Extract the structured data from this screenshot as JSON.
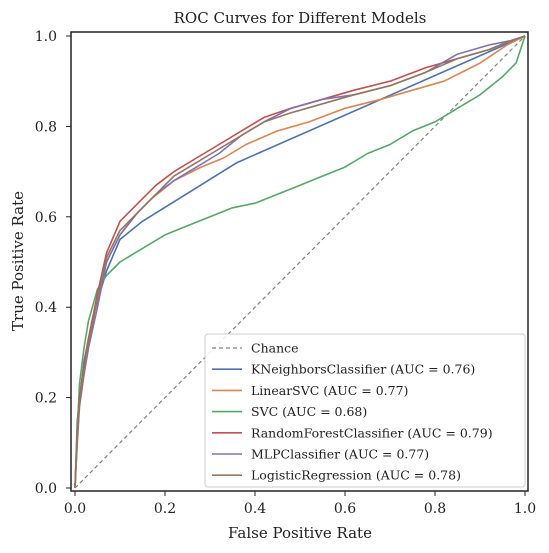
{
  "chart_data": {
    "type": "line",
    "title": "ROC Curves for Different Models",
    "xlabel": "False Positive Rate",
    "ylabel": "True Positive Rate",
    "xlim": [
      0.0,
      1.0
    ],
    "ylim": [
      0.0,
      1.0
    ],
    "xticks": [
      "0.0",
      "0.2",
      "0.4",
      "0.6",
      "0.8",
      "1.0"
    ],
    "yticks": [
      "0.0",
      "0.2",
      "0.4",
      "0.6",
      "0.8",
      "1.0"
    ],
    "grid": false,
    "legend_position": "lower-right",
    "series": [
      {
        "name": "Chance",
        "color": "#808080",
        "dashed": true,
        "x": [
          0,
          1
        ],
        "y": [
          0,
          1
        ]
      },
      {
        "name": "KNeighborsClassifier (AUC = 0.76)",
        "color": "#4c72b0",
        "dashed": false,
        "x": [
          0,
          0.005,
          0.02,
          0.04,
          0.07,
          0.1,
          0.15,
          0.36,
          1.0
        ],
        "y": [
          0,
          0.15,
          0.28,
          0.38,
          0.48,
          0.55,
          0.59,
          0.72,
          1.0
        ]
      },
      {
        "name": "LinearSVC (AUC = 0.77)",
        "color": "#dd8452",
        "dashed": false,
        "x": [
          0,
          0.005,
          0.01,
          0.02,
          0.03,
          0.05,
          0.07,
          0.1,
          0.13,
          0.17,
          0.22,
          0.28,
          0.33,
          0.38,
          0.45,
          0.52,
          0.6,
          0.68,
          0.75,
          0.82,
          0.9,
          0.96,
          1.0
        ],
        "y": [
          0,
          0.12,
          0.2,
          0.27,
          0.33,
          0.42,
          0.5,
          0.56,
          0.6,
          0.64,
          0.68,
          0.71,
          0.73,
          0.76,
          0.79,
          0.81,
          0.84,
          0.86,
          0.88,
          0.9,
          0.94,
          0.98,
          1.0
        ]
      },
      {
        "name": "SVC (AUC = 0.68)",
        "color": "#55a868",
        "dashed": false,
        "x": [
          0,
          0.005,
          0.01,
          0.02,
          0.03,
          0.05,
          0.07,
          0.1,
          0.15,
          0.2,
          0.25,
          0.3,
          0.35,
          0.4,
          0.45,
          0.5,
          0.55,
          0.6,
          0.65,
          0.7,
          0.75,
          0.8,
          0.85,
          0.9,
          0.95,
          0.98,
          1.0
        ],
        "y": [
          0,
          0.13,
          0.23,
          0.31,
          0.37,
          0.44,
          0.47,
          0.5,
          0.53,
          0.56,
          0.58,
          0.6,
          0.62,
          0.63,
          0.65,
          0.67,
          0.69,
          0.71,
          0.74,
          0.76,
          0.79,
          0.81,
          0.84,
          0.87,
          0.91,
          0.94,
          1.0
        ]
      },
      {
        "name": "RandomForestClassifier (AUC = 0.79)",
        "color": "#c44e52",
        "dashed": false,
        "x": [
          0,
          0.005,
          0.01,
          0.02,
          0.03,
          0.05,
          0.07,
          0.1,
          0.14,
          0.18,
          0.22,
          0.27,
          0.32,
          0.37,
          0.42,
          0.48,
          0.55,
          0.62,
          0.7,
          0.78,
          0.85,
          0.92,
          0.97,
          1.0
        ],
        "y": [
          0,
          0.12,
          0.2,
          0.27,
          0.33,
          0.43,
          0.52,
          0.59,
          0.63,
          0.67,
          0.7,
          0.73,
          0.76,
          0.79,
          0.82,
          0.84,
          0.86,
          0.88,
          0.9,
          0.93,
          0.95,
          0.97,
          0.99,
          1.0
        ]
      },
      {
        "name": "MLPClassifier (AUC = 0.77)",
        "color": "#8172b3",
        "dashed": false,
        "x": [
          0,
          0.005,
          0.01,
          0.02,
          0.03,
          0.05,
          0.07,
          0.1,
          0.14,
          0.18,
          0.22,
          0.27,
          0.32,
          0.37,
          0.42,
          0.48,
          0.55,
          0.62,
          0.7,
          0.78,
          0.85,
          0.92,
          0.97,
          1.0
        ],
        "y": [
          0,
          0.1,
          0.18,
          0.25,
          0.31,
          0.4,
          0.5,
          0.56,
          0.61,
          0.65,
          0.68,
          0.71,
          0.74,
          0.78,
          0.81,
          0.84,
          0.86,
          0.87,
          0.89,
          0.92,
          0.96,
          0.98,
          0.99,
          1.0
        ]
      },
      {
        "name": "LogisticRegression (AUC = 0.78)",
        "color": "#937860",
        "dashed": false,
        "x": [
          0,
          0.005,
          0.01,
          0.02,
          0.03,
          0.05,
          0.07,
          0.1,
          0.14,
          0.18,
          0.22,
          0.27,
          0.32,
          0.37,
          0.42,
          0.48,
          0.55,
          0.62,
          0.7,
          0.78,
          0.85,
          0.92,
          0.97,
          1.0
        ],
        "y": [
          0,
          0.11,
          0.19,
          0.26,
          0.32,
          0.42,
          0.51,
          0.57,
          0.61,
          0.65,
          0.69,
          0.72,
          0.75,
          0.78,
          0.81,
          0.83,
          0.85,
          0.87,
          0.89,
          0.92,
          0.95,
          0.97,
          0.99,
          1.0
        ]
      }
    ]
  }
}
